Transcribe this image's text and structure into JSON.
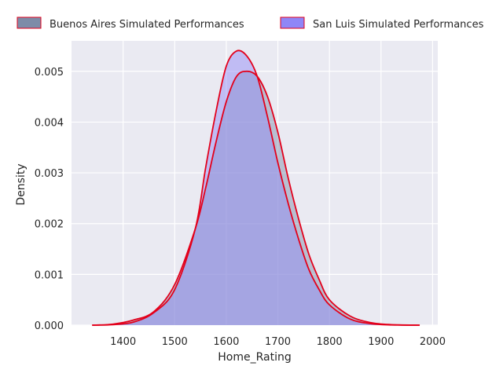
{
  "chart_data": {
    "type": "area",
    "title": "",
    "xlabel": "Home_Rating",
    "ylabel": "Density",
    "xlim": [
      1300,
      2010
    ],
    "ylim": [
      0,
      0.0056
    ],
    "x_ticks": [
      1400,
      1500,
      1600,
      1700,
      1800,
      1900,
      2000
    ],
    "y_ticks": [
      0.0,
      0.001,
      0.002,
      0.003,
      0.004,
      0.005
    ],
    "x_tick_labels": [
      "1400",
      "1500",
      "1600",
      "1700",
      "1800",
      "1900",
      "2000"
    ],
    "y_tick_labels": [
      "0.000",
      "0.001",
      "0.002",
      "0.003",
      "0.004",
      "0.005"
    ],
    "grid": true,
    "legend_placement": "top",
    "colors": {
      "background": "#eaeaf2",
      "grid": "#ffffff",
      "edge": "#e3001b",
      "buenos_aires_fill": "#7d8ca8",
      "san_luis_fill": "#8f86f7"
    },
    "series": [
      {
        "name": "Buenos Aires Simulated Performances",
        "x": [
          1340,
          1380,
          1420,
          1460,
          1500,
          1540,
          1560,
          1580,
          1600,
          1620,
          1640,
          1660,
          1680,
          1700,
          1720,
          1740,
          1760,
          1780,
          1800,
          1840,
          1880,
          1920,
          1975
        ],
        "y": [
          0.0,
          2e-05,
          0.0001,
          0.00027,
          0.0008,
          0.0019,
          0.0027,
          0.0036,
          0.0044,
          0.0049,
          0.005,
          0.0049,
          0.0045,
          0.0038,
          0.0029,
          0.0021,
          0.0014,
          0.0009,
          0.0005,
          0.00018,
          5e-05,
          1e-05,
          0.0
        ]
      },
      {
        "name": "San Luis Simulated Performances",
        "x": [
          1340,
          1380,
          1420,
          1460,
          1500,
          1540,
          1560,
          1580,
          1600,
          1620,
          1640,
          1660,
          1680,
          1700,
          1720,
          1740,
          1760,
          1780,
          1800,
          1840,
          1880,
          1920,
          1975
        ],
        "y": [
          0.0,
          1e-05,
          6e-05,
          0.00025,
          0.0007,
          0.0019,
          0.0031,
          0.0042,
          0.0051,
          0.0054,
          0.0053,
          0.0049,
          0.0041,
          0.0032,
          0.0024,
          0.0017,
          0.0011,
          0.0007,
          0.0004,
          0.00012,
          3e-05,
          5e-06,
          0.0
        ]
      }
    ]
  }
}
